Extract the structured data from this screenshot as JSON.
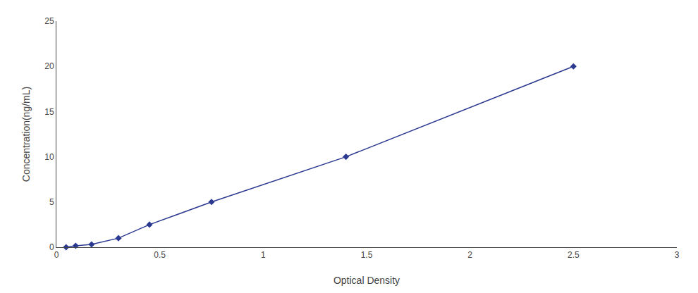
{
  "chart_data": {
    "type": "line",
    "x": [
      0.047,
      0.093,
      0.17,
      0.3,
      0.45,
      0.75,
      1.4,
      2.5
    ],
    "values": [
      0.0,
      0.16,
      0.31,
      1.0,
      2.5,
      5.0,
      10.0,
      20.0
    ],
    "color": "#2b3990",
    "marker": "diamond",
    "xlabel": "Optical Density",
    "ylabel": "Concentration(ng/mL)",
    "xlim": [
      0,
      3
    ],
    "ylim": [
      0,
      25
    ],
    "xticks": [
      0,
      0.5,
      1,
      1.5,
      2,
      2.5,
      3
    ],
    "yticks": [
      0,
      5,
      10,
      15,
      20,
      25
    ],
    "grid": false
  }
}
